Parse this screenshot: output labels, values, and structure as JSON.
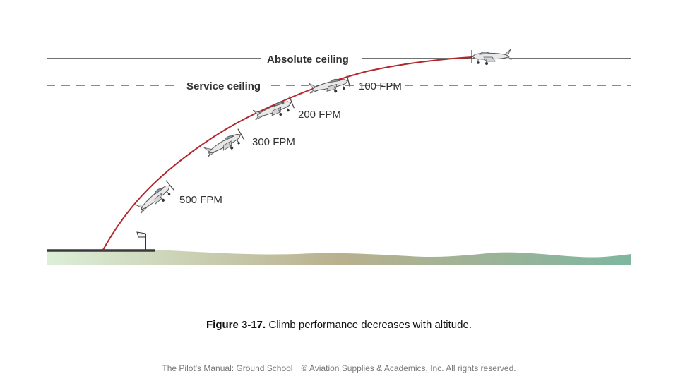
{
  "diagram": {
    "absolute_ceiling_label": "Absolute ceiling",
    "service_ceiling_label": "Service ceiling",
    "climb_rates": [
      {
        "label": "500 FPM"
      },
      {
        "label": "300 FPM"
      },
      {
        "label": "200 FPM"
      },
      {
        "label": "100 FPM"
      }
    ],
    "colors": {
      "climb_path": "#b3262b",
      "ceiling_line": "#444444",
      "ground": "#3a3a3a",
      "terrain_light": "#dcefd8",
      "terrain_mid": "#b9b08e",
      "terrain_dark": "#7fb6a0"
    },
    "icons": [
      "airplane-icon",
      "windsock-icon"
    ]
  },
  "caption": {
    "figure_number": "Figure 3-17.",
    "text": " Climb performance decreases with altitude."
  },
  "footer": {
    "book": "The Pilot's Manual: Ground School",
    "copyright": "© Aviation Supplies & Academics, Inc. All rights reserved."
  }
}
